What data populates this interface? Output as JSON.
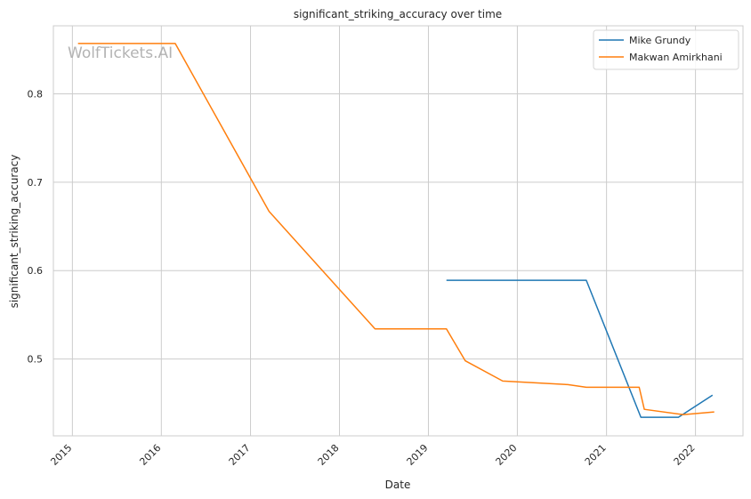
{
  "chart_data": {
    "type": "line",
    "title": "significant_striking_accuracy over time",
    "xlabel": "Date",
    "ylabel": "significant_striking_accuracy",
    "watermark": "WolfTickets.AI",
    "x_ticks": [
      "2015",
      "2016",
      "2017",
      "2018",
      "2019",
      "2020",
      "2021",
      "2022"
    ],
    "y_ticks": [
      "0.5",
      "0.6",
      "0.7",
      "0.8"
    ],
    "xlim": [
      "2014-10-15",
      "2022-07-15"
    ],
    "ylim": [
      0.413,
      0.877
    ],
    "grid": true,
    "legend_position": "top-right",
    "series": [
      {
        "name": "Mike Grundy",
        "color": "#1f77b4",
        "points": [
          {
            "x": "2019-03-16",
            "y": 0.589
          },
          {
            "x": "2020-10-10",
            "y": 0.589
          },
          {
            "x": "2021-05-22",
            "y": 0.434
          },
          {
            "x": "2021-10-23",
            "y": 0.434
          },
          {
            "x": "2022-03-12",
            "y": 0.459
          }
        ]
      },
      {
        "name": "Makwan Amirkhani",
        "color": "#ff7f0e",
        "points": [
          {
            "x": "2015-01-24",
            "y": 0.857
          },
          {
            "x": "2016-02-27",
            "y": 0.857
          },
          {
            "x": "2017-03-18",
            "y": 0.667
          },
          {
            "x": "2018-05-27",
            "y": 0.534
          },
          {
            "x": "2019-03-16",
            "y": 0.534
          },
          {
            "x": "2019-06-01",
            "y": 0.498
          },
          {
            "x": "2019-11-02",
            "y": 0.475
          },
          {
            "x": "2020-07-26",
            "y": 0.471
          },
          {
            "x": "2020-10-10",
            "y": 0.468
          },
          {
            "x": "2021-05-15",
            "y": 0.468
          },
          {
            "x": "2021-06-05",
            "y": 0.443
          },
          {
            "x": "2021-11-13",
            "y": 0.437
          },
          {
            "x": "2022-03-19",
            "y": 0.44
          }
        ]
      }
    ]
  }
}
